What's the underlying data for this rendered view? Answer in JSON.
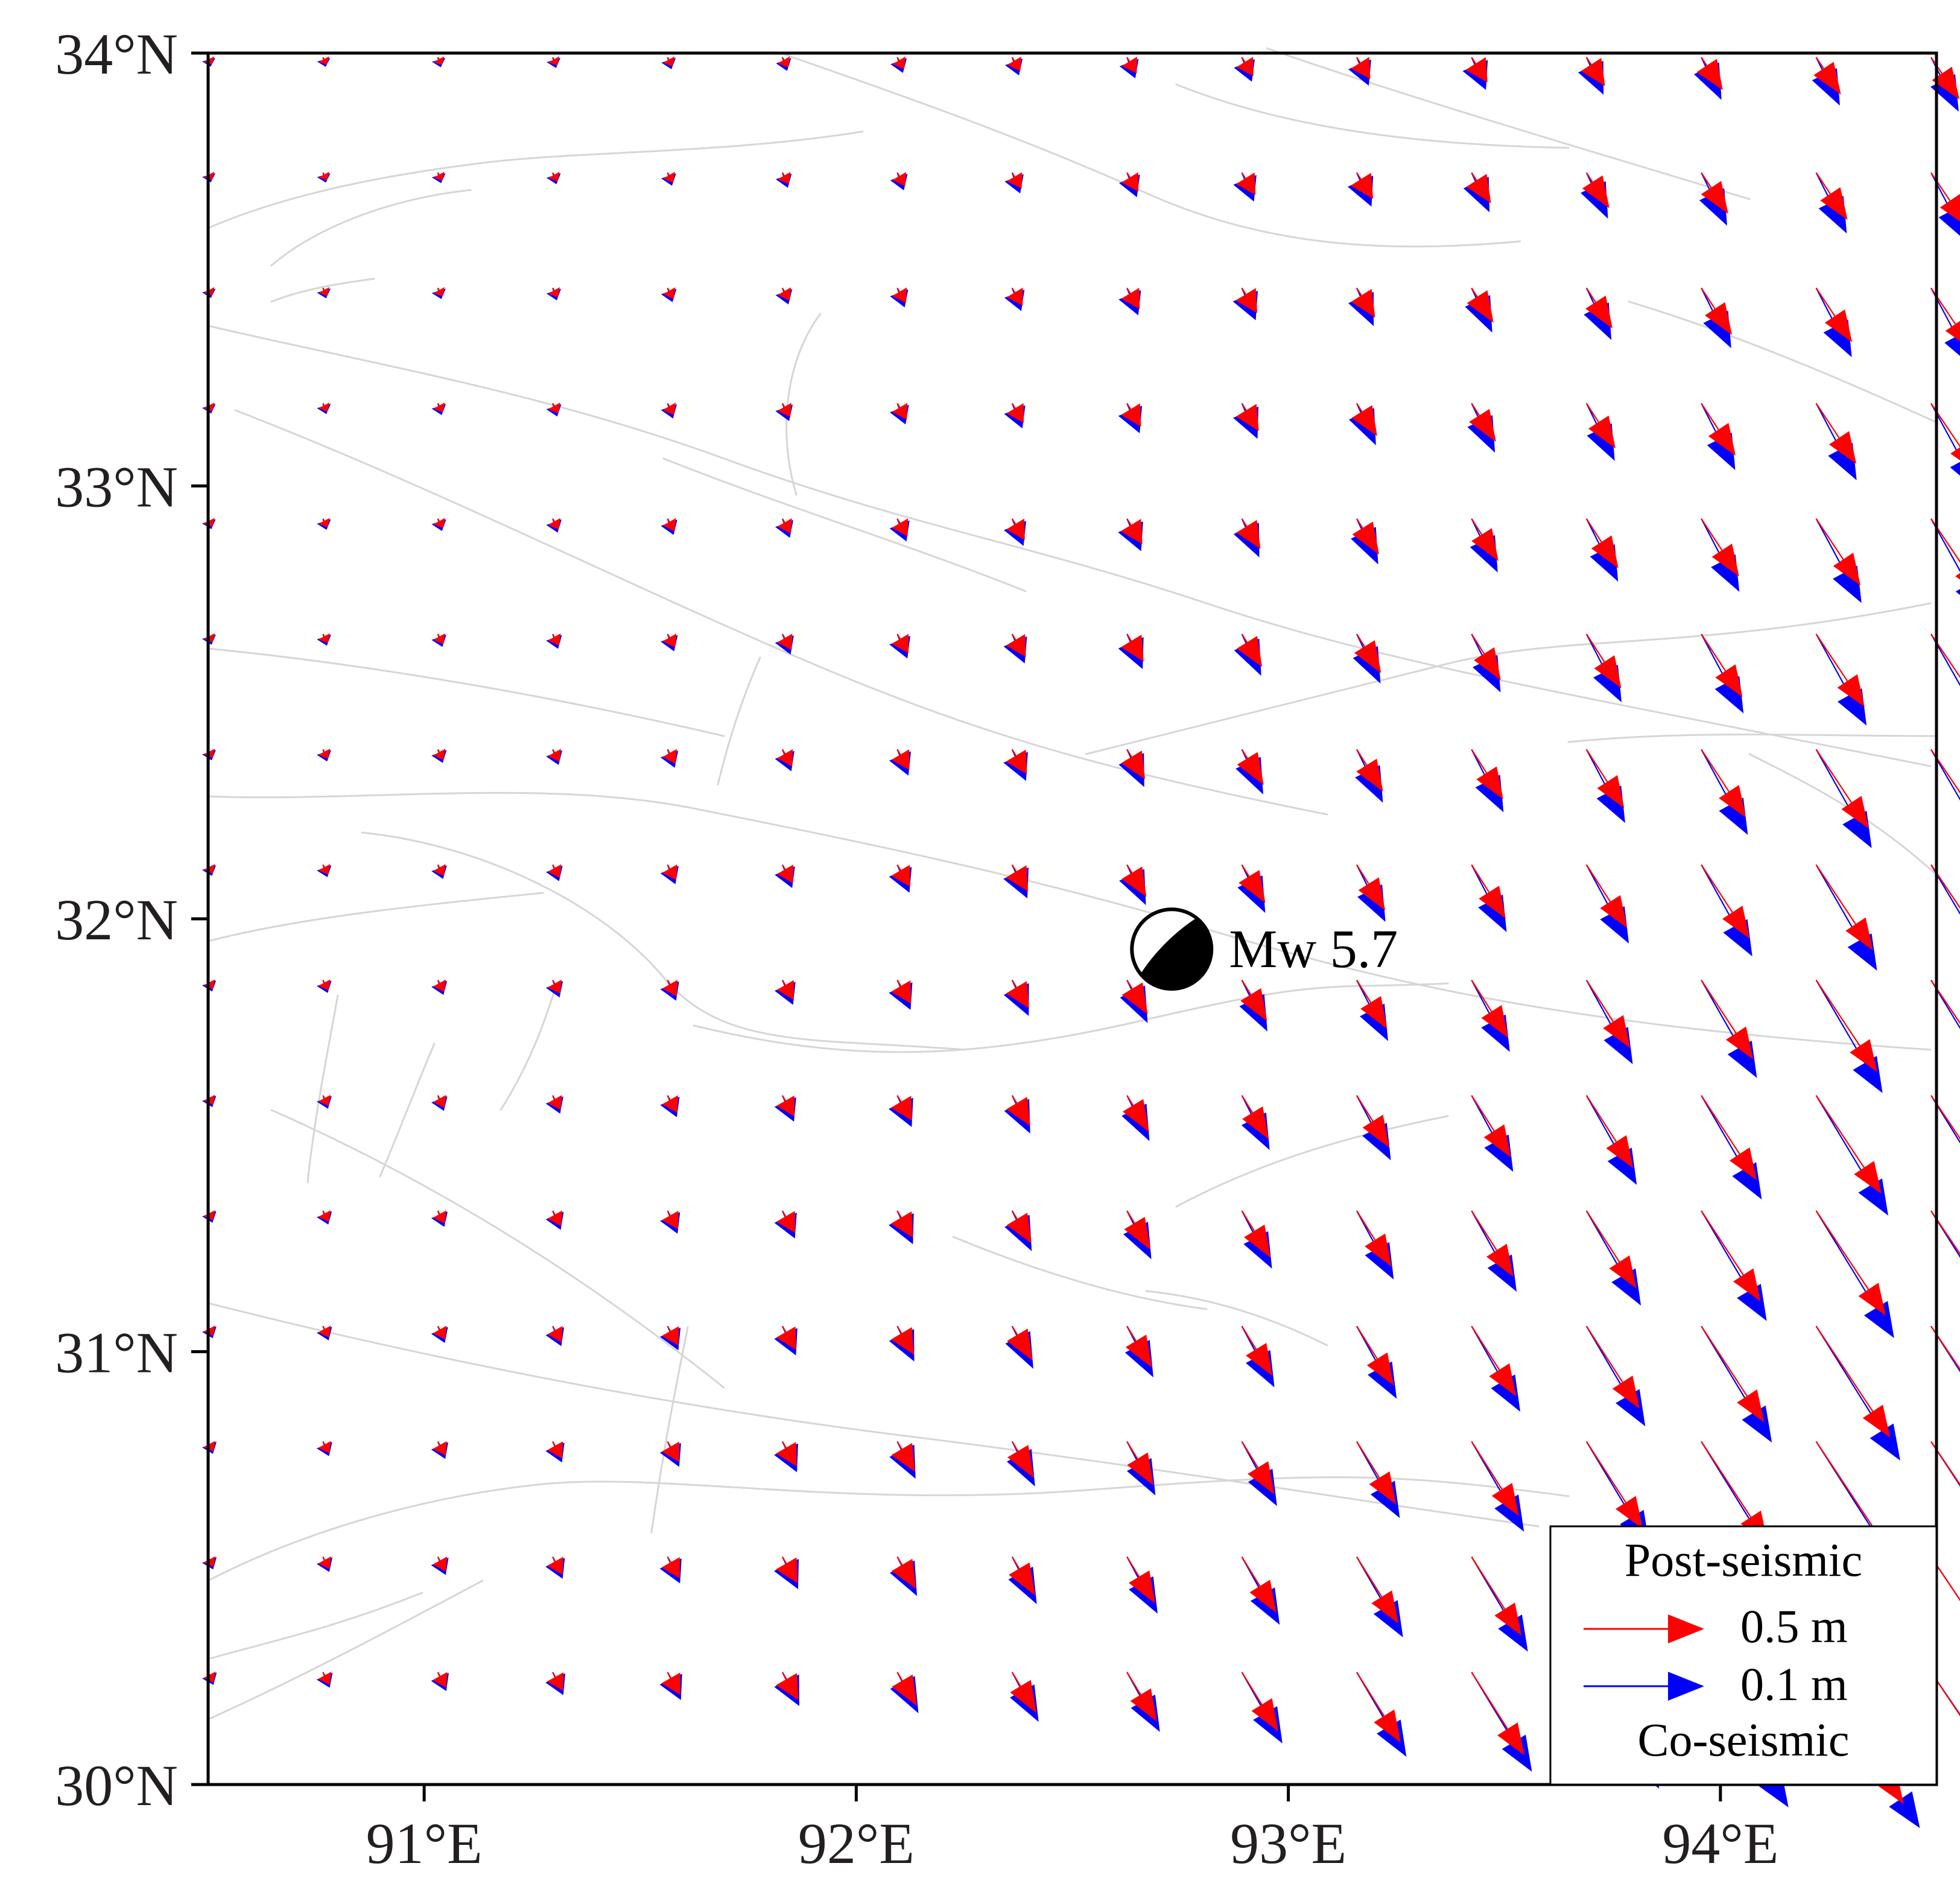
{
  "map": {
    "region": {
      "lon_min": 90.5,
      "lon_max": 94.5,
      "lat_min": 30,
      "lat_max": 34
    },
    "lon_ticks": [
      {
        "value": 91,
        "label": "91°E"
      },
      {
        "value": 92,
        "label": "92°E"
      },
      {
        "value": 93,
        "label": "93°E"
      },
      {
        "value": 94,
        "label": "94°E"
      }
    ],
    "lat_ticks": [
      {
        "value": 30,
        "label": "30°N"
      },
      {
        "value": 31,
        "label": "31°N"
      },
      {
        "value": 32,
        "label": "32°N"
      },
      {
        "value": 33,
        "label": "33°N"
      },
      {
        "value": 34,
        "label": "34°N"
      }
    ],
    "event": {
      "lon": 92.73,
      "lat": 31.93,
      "label": "Mw 5.7"
    },
    "colors": {
      "post_seismic": "#ff0000",
      "co_seismic": "#0000ff",
      "fault": "#d6d6d6",
      "frame": "#000000"
    },
    "legend": {
      "title": "Post-seismic",
      "post_label": "0.5 m",
      "co_label": "0.1 m",
      "footer": "Co-seismic"
    }
  }
}
